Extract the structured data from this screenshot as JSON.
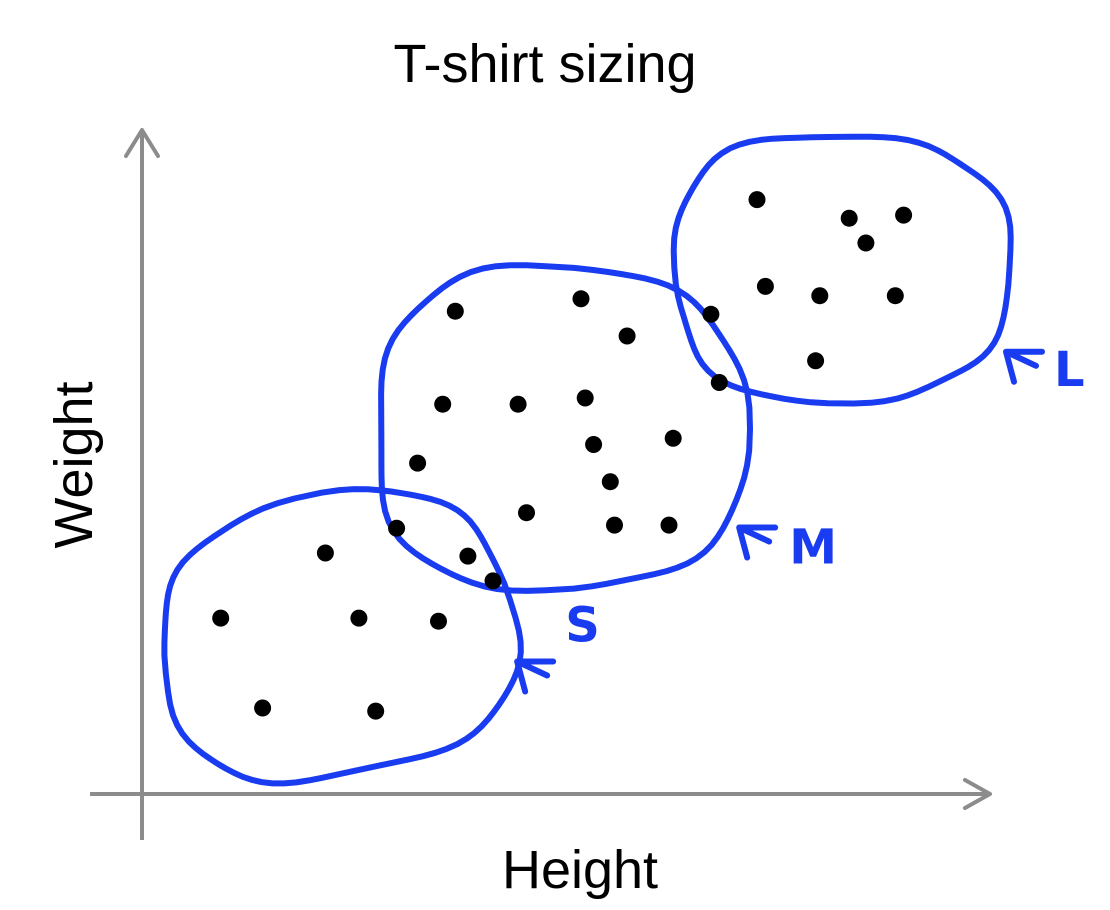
{
  "chart_data": {
    "type": "scatter",
    "title": "T-shirt sizing",
    "xlabel": "Height",
    "ylabel": "Weight",
    "xlim": [
      0,
      100
    ],
    "ylim": [
      0,
      100
    ],
    "grid": false,
    "marker_color": "#000000",
    "cluster_color": "#1a3cf0",
    "axis_color": "#8c8c8c",
    "points": [
      {
        "x": 7.0,
        "y": 24.5
      },
      {
        "x": 12.0,
        "y": 10.0
      },
      {
        "x": 19.5,
        "y": 35.0
      },
      {
        "x": 23.5,
        "y": 24.5
      },
      {
        "x": 25.5,
        "y": 9.5
      },
      {
        "x": 28.0,
        "y": 39.0
      },
      {
        "x": 33.0,
        "y": 24.0
      },
      {
        "x": 36.5,
        "y": 34.5
      },
      {
        "x": 39.5,
        "y": 30.5
      },
      {
        "x": 30.5,
        "y": 49.5
      },
      {
        "x": 33.5,
        "y": 59.0
      },
      {
        "x": 35.0,
        "y": 74.0
      },
      {
        "x": 43.5,
        "y": 41.5
      },
      {
        "x": 42.5,
        "y": 59.0
      },
      {
        "x": 50.0,
        "y": 76.0
      },
      {
        "x": 50.5,
        "y": 60.0
      },
      {
        "x": 51.5,
        "y": 52.5
      },
      {
        "x": 53.5,
        "y": 46.5
      },
      {
        "x": 54.0,
        "y": 39.5
      },
      {
        "x": 55.5,
        "y": 70.0
      },
      {
        "x": 61.0,
        "y": 53.5
      },
      {
        "x": 60.5,
        "y": 39.5
      },
      {
        "x": 65.5,
        "y": 73.5
      },
      {
        "x": 66.5,
        "y": 62.5
      },
      {
        "x": 71.0,
        "y": 92.0
      },
      {
        "x": 72.0,
        "y": 78.0
      },
      {
        "x": 78.5,
        "y": 76.5
      },
      {
        "x": 78.0,
        "y": 66.0
      },
      {
        "x": 82.0,
        "y": 89.0
      },
      {
        "x": 84.0,
        "y": 85.0
      },
      {
        "x": 87.5,
        "y": 76.5
      },
      {
        "x": 88.5,
        "y": 89.5
      }
    ],
    "clusters": [
      {
        "label": "S",
        "annotation": "S",
        "center": {
          "x": 21.0,
          "y": 21.5
        },
        "radius_x": 21.0,
        "radius_y": 22.5
      },
      {
        "label": "M",
        "annotation": "M",
        "center": {
          "x": 47.5,
          "y": 55.0
        },
        "radius_x": 22.0,
        "radius_y": 26.0
      },
      {
        "label": "L",
        "annotation": "L",
        "center": {
          "x": 81.0,
          "y": 81.0
        },
        "radius_x": 20.0,
        "radius_y": 21.5
      }
    ]
  }
}
